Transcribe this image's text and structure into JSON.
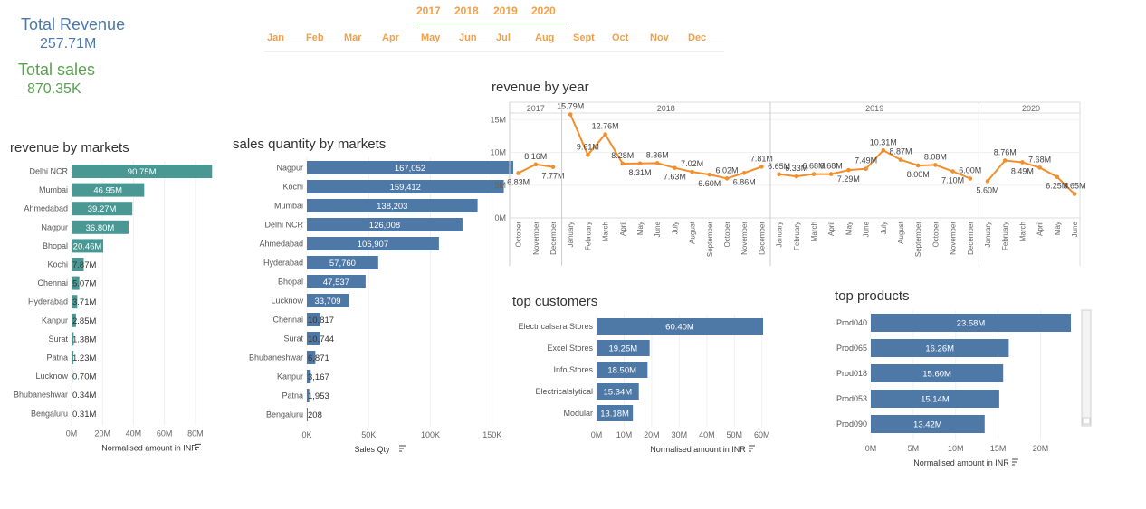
{
  "kpis": {
    "revenue_label": "Total Revenue",
    "revenue_value": "257.71M",
    "sales_label": "Total sales",
    "sales_value": "870.35K"
  },
  "filters": {
    "years": [
      "2017",
      "2018",
      "2019",
      "2020"
    ],
    "months": [
      "Jan",
      "Feb",
      "Mar",
      "Apr",
      "May",
      "Jun",
      "Jul",
      "Aug",
      "Sept",
      "Oct",
      "Nov",
      "Dec"
    ]
  },
  "colors": {
    "accent_blue": "#4e79a7",
    "accent_teal": "#499894",
    "accent_green": "#59a14f",
    "accent_orange": "#f28e2b",
    "filter_orange": "#f0a04b"
  },
  "charts": {
    "markets_title": "revenue by markets",
    "qty_title": "sales quantity by markets",
    "year_title": "revenue by year",
    "customers_title": "top customers",
    "products_title": "top products"
  },
  "chart_data": [
    {
      "id": "revenue-by-markets",
      "type": "bar",
      "orientation": "horizontal",
      "title": "revenue by markets",
      "xlabel": "Normalised amount in INR",
      "xlim": [
        0,
        90
      ],
      "xticks": [
        "0M",
        "20M",
        "40M",
        "60M",
        "80M"
      ],
      "categories": [
        "Delhi NCR",
        "Mumbai",
        "Ahmedabad",
        "Nagpur",
        "Bhopal",
        "Kochi",
        "Chennai",
        "Hyderabad",
        "Kanpur",
        "Surat",
        "Patna",
        "Lucknow",
        "Bhubaneshwar",
        "Bengaluru"
      ],
      "values": [
        90.75,
        46.95,
        39.27,
        36.8,
        20.46,
        7.87,
        5.07,
        3.71,
        2.85,
        1.38,
        1.23,
        0.7,
        0.34,
        0.31
      ],
      "labels": [
        "90.75M",
        "46.95M",
        "39.27M",
        "36.80M",
        "20.46M",
        "7.87M",
        "5.07M",
        "3.71M",
        "2.85M",
        "1.38M",
        "1.23M",
        "0.70M",
        "0.34M",
        "0.31M"
      ],
      "color": "#499894"
    },
    {
      "id": "sales-qty-by-markets",
      "type": "bar",
      "orientation": "horizontal",
      "title": "sales quantity by markets",
      "xlabel": "Sales Qty",
      "xlim": [
        0,
        170000
      ],
      "xticks": [
        "0K",
        "50K",
        "100K",
        "150K"
      ],
      "categories": [
        "Nagpur",
        "Kochi",
        "Mumbai",
        "Delhi NCR",
        "Ahmedabad",
        "Hyderabad",
        "Bhopal",
        "Lucknow",
        "Chennai",
        "Surat",
        "Bhubaneshwar",
        "Kanpur",
        "Patna",
        "Bengaluru"
      ],
      "values": [
        167052,
        159412,
        138203,
        126008,
        106907,
        57760,
        47537,
        33709,
        10817,
        10744,
        6871,
        3167,
        1953,
        208
      ],
      "labels": [
        "167,052",
        "159,412",
        "138,203",
        "126,008",
        "106,907",
        "57,760",
        "47,537",
        "33,709",
        "10,817",
        "10,744",
        "6,871",
        "3,167",
        "1,953",
        "208"
      ],
      "color": "#4e79a7"
    },
    {
      "id": "revenue-by-year",
      "type": "line",
      "title": "revenue by year",
      "ylim": [
        0,
        16
      ],
      "yticks": [
        "0M",
        "5M",
        "10M",
        "15M"
      ],
      "color": "#f28e2b",
      "panels": [
        {
          "year": "2017",
          "months": [
            "October",
            "November",
            "December"
          ],
          "values": [
            6.83,
            8.16,
            7.77
          ],
          "labels": [
            "6.83M",
            "8.16M",
            "7.77M"
          ]
        },
        {
          "year": "2018",
          "months": [
            "January",
            "February",
            "March",
            "April",
            "May",
            "June",
            "July",
            "August",
            "September",
            "October",
            "November",
            "December"
          ],
          "values": [
            15.79,
            9.61,
            12.76,
            8.28,
            8.31,
            8.36,
            7.63,
            7.02,
            6.6,
            6.02,
            6.86,
            7.81
          ],
          "labels": [
            "15.79M",
            "9.61M",
            "12.76M",
            "8.28M",
            "8.31M",
            "8.36M",
            "7.63M",
            "7.02M",
            "6.60M",
            "6.02M",
            "6.86M",
            "7.81M"
          ]
        },
        {
          "year": "2019",
          "months": [
            "January",
            "February",
            "March",
            "April",
            "May",
            "June",
            "July",
            "August",
            "September",
            "October",
            "November",
            "December"
          ],
          "values": [
            6.65,
            6.33,
            6.68,
            6.68,
            7.29,
            7.49,
            10.31,
            8.87,
            8.0,
            8.08,
            7.1,
            6.0
          ],
          "labels": [
            "6.65M",
            "6.33M",
            "6.68M",
            "6.68M",
            "7.29M",
            "7.49M",
            "10.31M",
            "8.87M",
            "8.00M",
            "8.08M",
            "7.10M",
            "6.00M"
          ]
        },
        {
          "year": "2020",
          "months": [
            "January",
            "February",
            "March",
            "April",
            "May",
            "June"
          ],
          "values": [
            5.6,
            8.76,
            8.49,
            7.68,
            6.25,
            3.65
          ],
          "labels": [
            "5.60M",
            "8.76M",
            "8.49M",
            "7.68M",
            "6.25M",
            "3.65M"
          ]
        }
      ]
    },
    {
      "id": "top-customers",
      "type": "bar",
      "orientation": "horizontal",
      "title": "top customers",
      "xlabel": "Normalised amount in INR",
      "xlim": [
        0,
        60.4
      ],
      "xticks": [
        "0M",
        "10M",
        "20M",
        "30M",
        "40M",
        "50M",
        "60M"
      ],
      "categories": [
        "Electricalsara Stores",
        "Excel Stores",
        "Info Stores",
        "Electricalslytical",
        "Modular"
      ],
      "values": [
        60.4,
        19.25,
        18.5,
        15.34,
        13.18
      ],
      "labels": [
        "60.40M",
        "19.25M",
        "18.50M",
        "15.34M",
        "13.18M"
      ],
      "color": "#4e79a7"
    },
    {
      "id": "top-products",
      "type": "bar",
      "orientation": "horizontal",
      "title": "top products",
      "xlabel": "Normalised amount in INR",
      "xlim": [
        0,
        23.58
      ],
      "xticks": [
        "0M",
        "5M",
        "10M",
        "15M",
        "20M"
      ],
      "categories": [
        "Prod040",
        "Prod065",
        "Prod018",
        "Prod053",
        "Prod090"
      ],
      "values": [
        23.58,
        16.26,
        15.6,
        15.14,
        13.42
      ],
      "labels": [
        "23.58M",
        "16.26M",
        "15.60M",
        "15.14M",
        "13.42M"
      ],
      "color": "#4e79a7"
    }
  ]
}
